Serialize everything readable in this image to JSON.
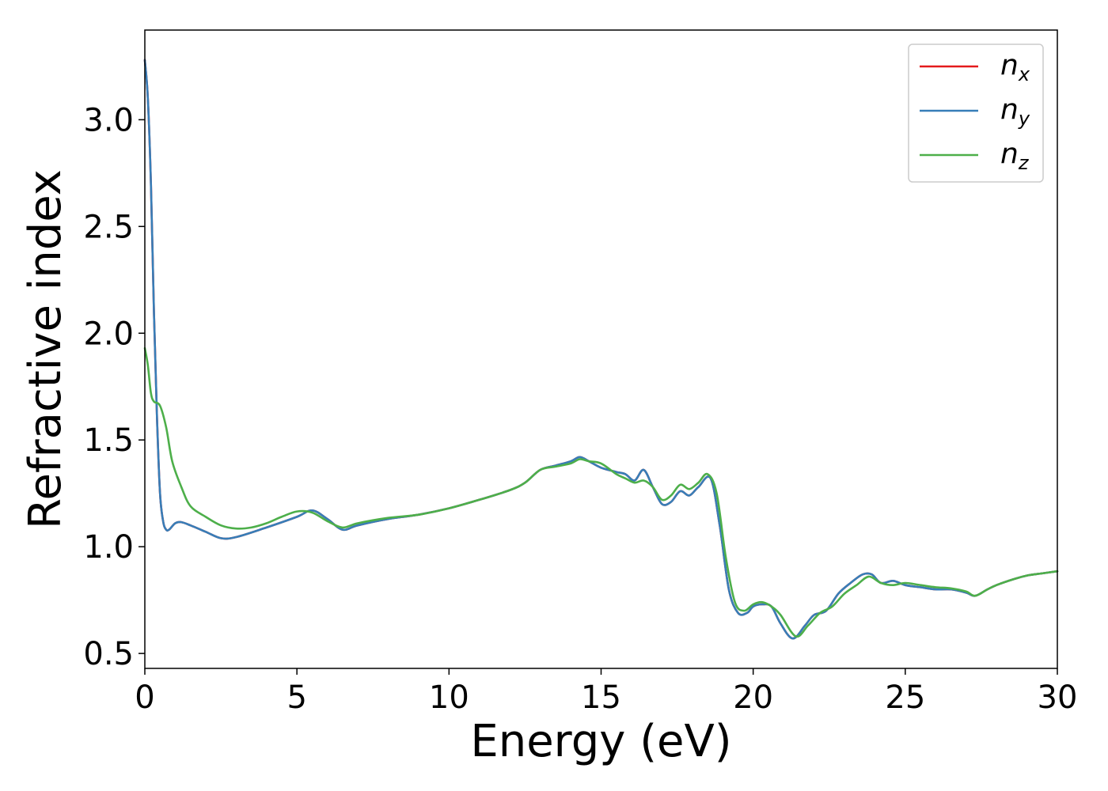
{
  "chart_data": {
    "type": "line",
    "title": "",
    "xlabel": "Energy (eV)",
    "ylabel": "Refractive index",
    "xlim": [
      0,
      30
    ],
    "ylim": [
      0.43,
      3.42
    ],
    "xticks": [
      "0",
      "5",
      "10",
      "15",
      "20",
      "25",
      "30"
    ],
    "yticks": [
      "0.5",
      "1.0",
      "1.5",
      "2.0",
      "2.5",
      "3.0"
    ],
    "grid": false,
    "legend_position": "top-right",
    "series": [
      {
        "name": "n_x",
        "legend_base": "n",
        "legend_sub": "x",
        "color": "#e41a1c",
        "x": [
          0,
          0.1,
          0.2,
          0.3,
          0.4,
          0.5,
          0.6,
          0.7,
          0.8,
          1.0,
          1.2,
          1.5,
          2.0,
          2.5,
          3.0,
          4.0,
          5.0,
          5.5,
          6.0,
          6.5,
          7.0,
          8.0,
          9.0,
          10.0,
          11.0,
          12.0,
          12.5,
          13.0,
          13.5,
          14.0,
          14.3,
          14.6,
          15.0,
          15.5,
          15.8,
          16.1,
          16.4,
          16.7,
          17.0,
          17.3,
          17.6,
          17.9,
          18.2,
          18.6,
          18.9,
          19.2,
          19.5,
          19.8,
          20.0,
          20.3,
          20.6,
          20.9,
          21.3,
          21.7,
          22.0,
          22.4,
          22.8,
          23.2,
          23.6,
          23.9,
          24.2,
          24.6,
          25.0,
          25.5,
          26.0,
          26.5,
          27.0,
          27.3,
          27.7,
          28.0,
          28.5,
          29.0,
          29.5,
          30.0
        ],
        "y": [
          3.28,
          3.1,
          2.7,
          2.1,
          1.6,
          1.25,
          1.12,
          1.08,
          1.08,
          1.11,
          1.115,
          1.1,
          1.07,
          1.04,
          1.045,
          1.09,
          1.14,
          1.17,
          1.13,
          1.08,
          1.1,
          1.13,
          1.15,
          1.18,
          1.22,
          1.265,
          1.3,
          1.36,
          1.38,
          1.4,
          1.42,
          1.4,
          1.37,
          1.35,
          1.34,
          1.31,
          1.36,
          1.28,
          1.2,
          1.21,
          1.26,
          1.24,
          1.28,
          1.32,
          1.1,
          0.8,
          0.69,
          0.69,
          0.72,
          0.73,
          0.72,
          0.64,
          0.57,
          0.63,
          0.68,
          0.7,
          0.78,
          0.83,
          0.87,
          0.87,
          0.83,
          0.84,
          0.82,
          0.81,
          0.8,
          0.8,
          0.785,
          0.77,
          0.8,
          0.82,
          0.845,
          0.865,
          0.875,
          0.885
        ]
      },
      {
        "name": "n_y",
        "legend_base": "n",
        "legend_sub": "y",
        "color": "#377eb8",
        "x": [
          0,
          0.1,
          0.2,
          0.3,
          0.4,
          0.5,
          0.6,
          0.7,
          0.8,
          1.0,
          1.2,
          1.5,
          2.0,
          2.5,
          3.0,
          4.0,
          5.0,
          5.5,
          6.0,
          6.5,
          7.0,
          8.0,
          9.0,
          10.0,
          11.0,
          12.0,
          12.5,
          13.0,
          13.5,
          14.0,
          14.3,
          14.6,
          15.0,
          15.5,
          15.8,
          16.1,
          16.4,
          16.7,
          17.0,
          17.3,
          17.6,
          17.9,
          18.2,
          18.6,
          18.9,
          19.2,
          19.5,
          19.8,
          20.0,
          20.3,
          20.6,
          20.9,
          21.3,
          21.7,
          22.0,
          22.4,
          22.8,
          23.2,
          23.6,
          23.9,
          24.2,
          24.6,
          25.0,
          25.5,
          26.0,
          26.5,
          27.0,
          27.3,
          27.7,
          28.0,
          28.5,
          29.0,
          29.5,
          30.0
        ],
        "y": [
          3.28,
          3.1,
          2.7,
          2.1,
          1.6,
          1.25,
          1.12,
          1.08,
          1.08,
          1.11,
          1.115,
          1.1,
          1.07,
          1.04,
          1.045,
          1.09,
          1.14,
          1.17,
          1.13,
          1.08,
          1.1,
          1.13,
          1.15,
          1.18,
          1.22,
          1.265,
          1.3,
          1.36,
          1.38,
          1.4,
          1.42,
          1.4,
          1.37,
          1.35,
          1.34,
          1.31,
          1.36,
          1.28,
          1.2,
          1.21,
          1.26,
          1.24,
          1.28,
          1.32,
          1.1,
          0.8,
          0.69,
          0.69,
          0.72,
          0.73,
          0.72,
          0.64,
          0.57,
          0.63,
          0.68,
          0.7,
          0.78,
          0.83,
          0.87,
          0.87,
          0.83,
          0.84,
          0.82,
          0.81,
          0.8,
          0.8,
          0.785,
          0.77,
          0.8,
          0.82,
          0.845,
          0.865,
          0.875,
          0.885
        ]
      },
      {
        "name": "n_z",
        "legend_base": "n",
        "legend_sub": "z",
        "color": "#4daf4a",
        "x": [
          0,
          0.1,
          0.2,
          0.3,
          0.5,
          0.7,
          0.9,
          1.2,
          1.5,
          2.0,
          2.5,
          3.0,
          3.5,
          4.0,
          4.5,
          5.0,
          5.5,
          6.0,
          6.5,
          7.0,
          8.0,
          9.0,
          10.0,
          11.0,
          12.0,
          12.5,
          13.0,
          13.5,
          14.0,
          14.3,
          14.6,
          15.0,
          15.5,
          15.8,
          16.1,
          16.4,
          16.7,
          17.0,
          17.3,
          17.6,
          17.9,
          18.2,
          18.5,
          18.8,
          19.1,
          19.4,
          19.7,
          20.0,
          20.3,
          20.6,
          20.9,
          21.4,
          21.8,
          22.2,
          22.6,
          23.0,
          23.4,
          23.8,
          24.2,
          24.6,
          25.0,
          25.5,
          26.0,
          26.5,
          27.0,
          27.3,
          27.7,
          28.0,
          28.5,
          29.0,
          29.5,
          30.0
        ],
        "y": [
          1.93,
          1.85,
          1.72,
          1.68,
          1.66,
          1.56,
          1.4,
          1.28,
          1.19,
          1.14,
          1.1,
          1.085,
          1.09,
          1.11,
          1.14,
          1.165,
          1.16,
          1.12,
          1.09,
          1.11,
          1.135,
          1.15,
          1.18,
          1.22,
          1.265,
          1.3,
          1.36,
          1.375,
          1.39,
          1.41,
          1.4,
          1.39,
          1.34,
          1.32,
          1.3,
          1.31,
          1.28,
          1.22,
          1.24,
          1.29,
          1.27,
          1.3,
          1.34,
          1.25,
          0.95,
          0.74,
          0.7,
          0.73,
          0.74,
          0.72,
          0.68,
          0.58,
          0.63,
          0.69,
          0.72,
          0.78,
          0.82,
          0.86,
          0.83,
          0.82,
          0.83,
          0.82,
          0.81,
          0.805,
          0.79,
          0.77,
          0.8,
          0.82,
          0.845,
          0.865,
          0.875,
          0.885
        ]
      }
    ]
  }
}
